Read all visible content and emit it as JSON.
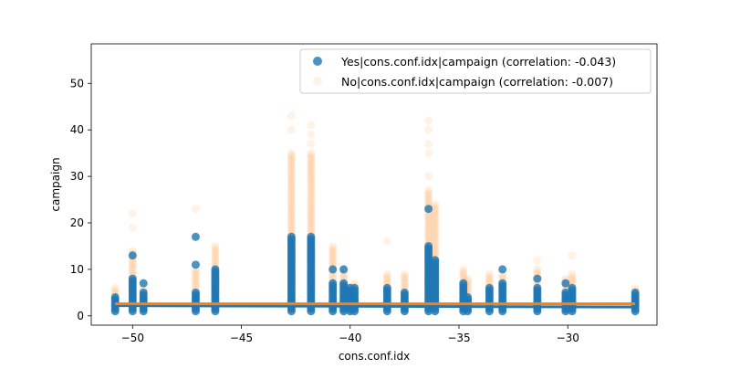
{
  "chart_data": {
    "type": "scatter",
    "title": "",
    "xlabel": "cons.conf.idx",
    "ylabel": "campaign",
    "xlim": [
      -51.9,
      -25.9
    ],
    "ylim": [
      -2.0,
      58.5
    ],
    "x_ticks": [
      -50,
      -45,
      -40,
      -35,
      -30
    ],
    "x_tick_labels": [
      "−50",
      "−45",
      "−40",
      "−35",
      "−30"
    ],
    "y_ticks": [
      0,
      10,
      20,
      30,
      40,
      50
    ],
    "y_tick_labels": [
      "0",
      "10",
      "20",
      "30",
      "40",
      "50"
    ],
    "grid": false,
    "legend_position": "top-right",
    "series": [
      {
        "name": "Yes|cons.conf.idx|campaign (correlation: -0.043)",
        "color": "#1f77b4",
        "alpha": 0.8,
        "points": [
          {
            "x": -50.8,
            "ymax": 4,
            "extras": []
          },
          {
            "x": -50.0,
            "ymax": 8,
            "extras": [
              13
            ]
          },
          {
            "x": -49.5,
            "ymax": 5,
            "extras": [
              7
            ]
          },
          {
            "x": -47.1,
            "ymax": 5,
            "extras": [
              11,
              17
            ]
          },
          {
            "x": -46.2,
            "ymax": 10,
            "extras": []
          },
          {
            "x": -42.7,
            "ymax": 17,
            "extras": []
          },
          {
            "x": -41.8,
            "ymax": 17,
            "extras": []
          },
          {
            "x": -40.8,
            "ymax": 7,
            "extras": [
              10
            ]
          },
          {
            "x": -40.3,
            "ymax": 7,
            "extras": [
              10
            ]
          },
          {
            "x": -40.0,
            "ymax": 6,
            "extras": []
          },
          {
            "x": -39.8,
            "ymax": 6,
            "extras": []
          },
          {
            "x": -38.3,
            "ymax": 6,
            "extras": []
          },
          {
            "x": -37.5,
            "ymax": 5,
            "extras": []
          },
          {
            "x": -36.4,
            "ymax": 15,
            "extras": [
              23
            ]
          },
          {
            "x": -36.1,
            "ymax": 12,
            "extras": []
          },
          {
            "x": -34.8,
            "ymax": 7,
            "extras": []
          },
          {
            "x": -34.6,
            "ymax": 4,
            "extras": []
          },
          {
            "x": -33.6,
            "ymax": 6,
            "extras": []
          },
          {
            "x": -33.0,
            "ymax": 7,
            "extras": [
              10
            ]
          },
          {
            "x": -31.4,
            "ymax": 6,
            "extras": [
              8
            ]
          },
          {
            "x": -30.1,
            "ymax": 5,
            "extras": [
              7
            ]
          },
          {
            "x": -29.8,
            "ymax": 6,
            "extras": []
          },
          {
            "x": -26.9,
            "ymax": 5,
            "extras": []
          }
        ],
        "regression": {
          "x": [
            -50.8,
            -26.9
          ],
          "y": [
            2.2,
            1.9
          ]
        }
      },
      {
        "name": "No|cons.conf.idx|campaign (correlation: -0.007)",
        "color": "#ff7f0e",
        "alpha": 0.1,
        "points": [
          {
            "x": -50.8,
            "ymax": 6,
            "extras": []
          },
          {
            "x": -50.0,
            "ymax": 14,
            "extras": [
              19,
              22
            ]
          },
          {
            "x": -49.5,
            "ymax": 6,
            "extras": []
          },
          {
            "x": -47.1,
            "ymax": 10,
            "extras": [
              23
            ]
          },
          {
            "x": -46.2,
            "ymax": 15,
            "extras": []
          },
          {
            "x": -42.7,
            "ymax": 35,
            "extras": [
              40,
              43
            ]
          },
          {
            "x": -41.8,
            "ymax": 35,
            "extras": [
              37,
              39,
              41
            ]
          },
          {
            "x": -40.8,
            "ymax": 15,
            "extras": []
          },
          {
            "x": -40.3,
            "ymax": 10,
            "extras": []
          },
          {
            "x": -40.0,
            "ymax": 6,
            "extras": []
          },
          {
            "x": -39.8,
            "ymax": 7,
            "extras": []
          },
          {
            "x": -38.3,
            "ymax": 9,
            "extras": [
              16
            ]
          },
          {
            "x": -37.5,
            "ymax": 9,
            "extras": []
          },
          {
            "x": -36.4,
            "ymax": 27,
            "extras": [
              30,
              35,
              37,
              40,
              42
            ]
          },
          {
            "x": -36.1,
            "ymax": 24,
            "extras": []
          },
          {
            "x": -34.8,
            "ymax": 10,
            "extras": []
          },
          {
            "x": -34.6,
            "ymax": 8,
            "extras": []
          },
          {
            "x": -33.6,
            "ymax": 9,
            "extras": []
          },
          {
            "x": -33.0,
            "ymax": 9,
            "extras": []
          },
          {
            "x": -31.4,
            "ymax": 10,
            "extras": [
              12
            ]
          },
          {
            "x": -30.1,
            "ymax": 8,
            "extras": []
          },
          {
            "x": -29.8,
            "ymax": 9,
            "extras": [
              13
            ]
          },
          {
            "x": -26.9,
            "ymax": 6,
            "extras": []
          }
        ],
        "regression": {
          "x": [
            -50.8,
            -26.9
          ],
          "y": [
            2.6,
            2.6
          ]
        }
      }
    ]
  }
}
